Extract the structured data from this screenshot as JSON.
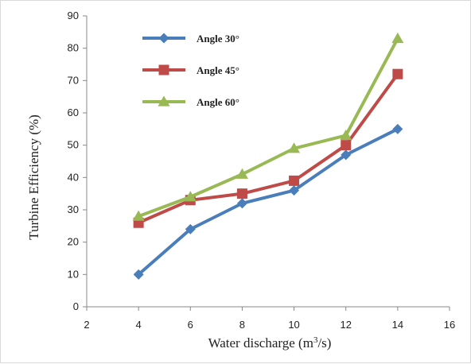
{
  "chart_data": {
    "type": "line",
    "xlabel": "Water discharge (m",
    "xlabel_sup": "3",
    "xlabel_suffix": "/s)",
    "ylabel": "Turbine Efficiency (%)",
    "xlim": [
      2,
      16
    ],
    "ylim": [
      0,
      90
    ],
    "x_ticks": [
      "2",
      "4",
      "6",
      "8",
      "10",
      "12",
      "14",
      "16"
    ],
    "y_ticks": [
      "0",
      "10",
      "20",
      "30",
      "40",
      "50",
      "60",
      "70",
      "80",
      "90"
    ],
    "grid": false,
    "legend_position": "top-left",
    "series": [
      {
        "name": "Angle 30°",
        "color": "#4a7ebb",
        "marker": "diamond",
        "x": [
          4,
          6,
          8,
          10,
          12,
          14
        ],
        "values": [
          10,
          24,
          32,
          36,
          47,
          55
        ]
      },
      {
        "name": "Angle 45°",
        "color": "#be4b48",
        "marker": "square",
        "x": [
          4,
          6,
          8,
          10,
          12,
          14
        ],
        "values": [
          26,
          33,
          35,
          39,
          50,
          72
        ]
      },
      {
        "name": "Angle 60°",
        "color": "#98b954",
        "marker": "triangle",
        "x": [
          4,
          6,
          8,
          10,
          12,
          14
        ],
        "values": [
          28,
          34,
          41,
          49,
          53,
          83
        ]
      }
    ]
  }
}
